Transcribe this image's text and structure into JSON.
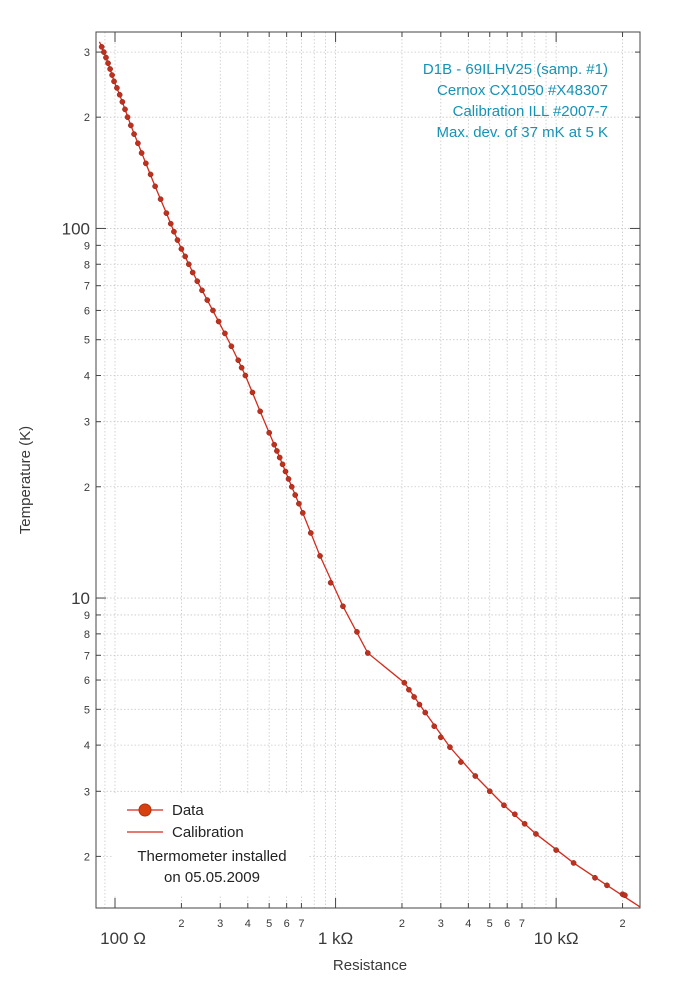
{
  "chart_data": {
    "type": "scatter",
    "xlabel": "Resistance",
    "ylabel": "Temperature (K)",
    "xscale": "log",
    "yscale": "log",
    "xlim": [
      82,
      24000
    ],
    "ylim": [
      1.45,
      340
    ],
    "grid": true,
    "x_major_ticks": [
      {
        "value": 100,
        "label": "100  Ω"
      },
      {
        "value": 1000,
        "label": "1 kΩ"
      },
      {
        "value": 10000,
        "label": "10 kΩ"
      }
    ],
    "x_minor_ticks": [
      {
        "value": 200,
        "label": "2"
      },
      {
        "value": 300,
        "label": "3"
      },
      {
        "value": 400,
        "label": "4"
      },
      {
        "value": 500,
        "label": "5"
      },
      {
        "value": 600,
        "label": "6"
      },
      {
        "value": 700,
        "label": "7"
      },
      {
        "value": 2000,
        "label": "2"
      },
      {
        "value": 3000,
        "label": "3"
      },
      {
        "value": 4000,
        "label": "4"
      },
      {
        "value": 5000,
        "label": "5"
      },
      {
        "value": 6000,
        "label": "6"
      },
      {
        "value": 7000,
        "label": "7"
      },
      {
        "value": 20000,
        "label": "2"
      }
    ],
    "y_major_ticks": [
      {
        "value": 10,
        "label": "10"
      },
      {
        "value": 100,
        "label": "100"
      }
    ],
    "y_minor_ticks": [
      {
        "value": 2,
        "label": "2"
      },
      {
        "value": 3,
        "label": "3"
      },
      {
        "value": 4,
        "label": "4"
      },
      {
        "value": 5,
        "label": "5"
      },
      {
        "value": 6,
        "label": "6"
      },
      {
        "value": 7,
        "label": "7"
      },
      {
        "value": 8,
        "label": "8"
      },
      {
        "value": 9,
        "label": "9"
      },
      {
        "value": 20,
        "label": "2"
      },
      {
        "value": 30,
        "label": "3"
      },
      {
        "value": 40,
        "label": "4"
      },
      {
        "value": 50,
        "label": "5"
      },
      {
        "value": 60,
        "label": "6"
      },
      {
        "value": 70,
        "label": "7"
      },
      {
        "value": 80,
        "label": "8"
      },
      {
        "value": 90,
        "label": "9"
      },
      {
        "value": 200,
        "label": "2"
      },
      {
        "value": 300,
        "label": "3"
      }
    ],
    "series": [
      {
        "name": "Data",
        "kind": "scatter",
        "color": "#c0301e",
        "points": [
          [
            87,
            310
          ],
          [
            89,
            300
          ],
          [
            91,
            290
          ],
          [
            93,
            280
          ],
          [
            95,
            270
          ],
          [
            97,
            260
          ],
          [
            99,
            250
          ],
          [
            102,
            240
          ],
          [
            105,
            230
          ],
          [
            108,
            220
          ],
          [
            111,
            210
          ],
          [
            114,
            200
          ],
          [
            118,
            190
          ],
          [
            122,
            180
          ],
          [
            127,
            170
          ],
          [
            132,
            160
          ],
          [
            138,
            150
          ],
          [
            145,
            140
          ],
          [
            152,
            130
          ],
          [
            161,
            120
          ],
          [
            171,
            110
          ],
          [
            179,
            103
          ],
          [
            185,
            98
          ],
          [
            192,
            93
          ],
          [
            200,
            88
          ],
          [
            208,
            84
          ],
          [
            216,
            80
          ],
          [
            225,
            76
          ],
          [
            236,
            72
          ],
          [
            248,
            68
          ],
          [
            262,
            64
          ],
          [
            278,
            60
          ],
          [
            295,
            56
          ],
          [
            315,
            52
          ],
          [
            337,
            48
          ],
          [
            362,
            44
          ],
          [
            375,
            42
          ],
          [
            390,
            40
          ],
          [
            420,
            36
          ],
          [
            455,
            32
          ],
          [
            500,
            28
          ],
          [
            527,
            26
          ],
          [
            542,
            25
          ],
          [
            558,
            24
          ],
          [
            575,
            23
          ],
          [
            593,
            22
          ],
          [
            612,
            21
          ],
          [
            633,
            20
          ],
          [
            656,
            19
          ],
          [
            682,
            18
          ],
          [
            710,
            17
          ],
          [
            772,
            15
          ],
          [
            850,
            13
          ],
          [
            950,
            11
          ],
          [
            1080,
            9.5
          ],
          [
            1250,
            8.1
          ],
          [
            1400,
            7.1
          ],
          [
            2050,
            5.9
          ],
          [
            2150,
            5.65
          ],
          [
            2270,
            5.4
          ],
          [
            2400,
            5.15
          ],
          [
            2550,
            4.9
          ],
          [
            2800,
            4.5
          ],
          [
            3000,
            4.2
          ],
          [
            3300,
            3.95
          ],
          [
            3700,
            3.6
          ],
          [
            4300,
            3.3
          ],
          [
            5000,
            3.0
          ],
          [
            5800,
            2.75
          ],
          [
            6500,
            2.6
          ],
          [
            7200,
            2.45
          ],
          [
            8100,
            2.3
          ],
          [
            10000,
            2.08
          ],
          [
            12000,
            1.92
          ],
          [
            15000,
            1.75
          ],
          [
            17000,
            1.67
          ],
          [
            20000,
            1.58
          ],
          [
            20500,
            1.57
          ]
        ]
      },
      {
        "name": "Calibration",
        "kind": "line",
        "color": "#d42a1c",
        "points": [
          [
            85,
            320
          ],
          [
            87,
            310
          ],
          [
            91,
            290
          ],
          [
            95,
            270
          ],
          [
            99,
            250
          ],
          [
            105,
            230
          ],
          [
            111,
            210
          ],
          [
            118,
            190
          ],
          [
            127,
            170
          ],
          [
            138,
            150
          ],
          [
            152,
            130
          ],
          [
            171,
            110
          ],
          [
            185,
            98
          ],
          [
            200,
            88
          ],
          [
            216,
            80
          ],
          [
            236,
            72
          ],
          [
            262,
            64
          ],
          [
            295,
            56
          ],
          [
            337,
            48
          ],
          [
            390,
            40
          ],
          [
            455,
            32
          ],
          [
            500,
            28
          ],
          [
            558,
            24
          ],
          [
            633,
            20
          ],
          [
            710,
            17
          ],
          [
            850,
            13
          ],
          [
            1080,
            9.5
          ],
          [
            1400,
            7.1
          ],
          [
            2050,
            5.9
          ],
          [
            2550,
            4.9
          ],
          [
            3300,
            3.95
          ],
          [
            4300,
            3.3
          ],
          [
            5800,
            2.75
          ],
          [
            8100,
            2.3
          ],
          [
            12000,
            1.92
          ],
          [
            17000,
            1.67
          ],
          [
            24000,
            1.46
          ]
        ]
      }
    ],
    "annotation_lines": [
      "D1B - 69ILHV25 (samp. #1)",
      "Cernox CX1050 #X48307",
      "Calibration ILL #2007-7",
      "Max. dev. of 37 mK at 5 K"
    ],
    "annotation_position": "top-right",
    "annotation_color": "#1592b4",
    "legend_position": "bottom-left",
    "legend_entries": [
      {
        "label": "Data",
        "color": "#d8400f",
        "marker": "circle"
      },
      {
        "label": "Calibration",
        "color": "#d42a1c",
        "marker": "line"
      }
    ],
    "legend_note": [
      "Thermometer installed",
      "on 05.05.2009"
    ]
  }
}
